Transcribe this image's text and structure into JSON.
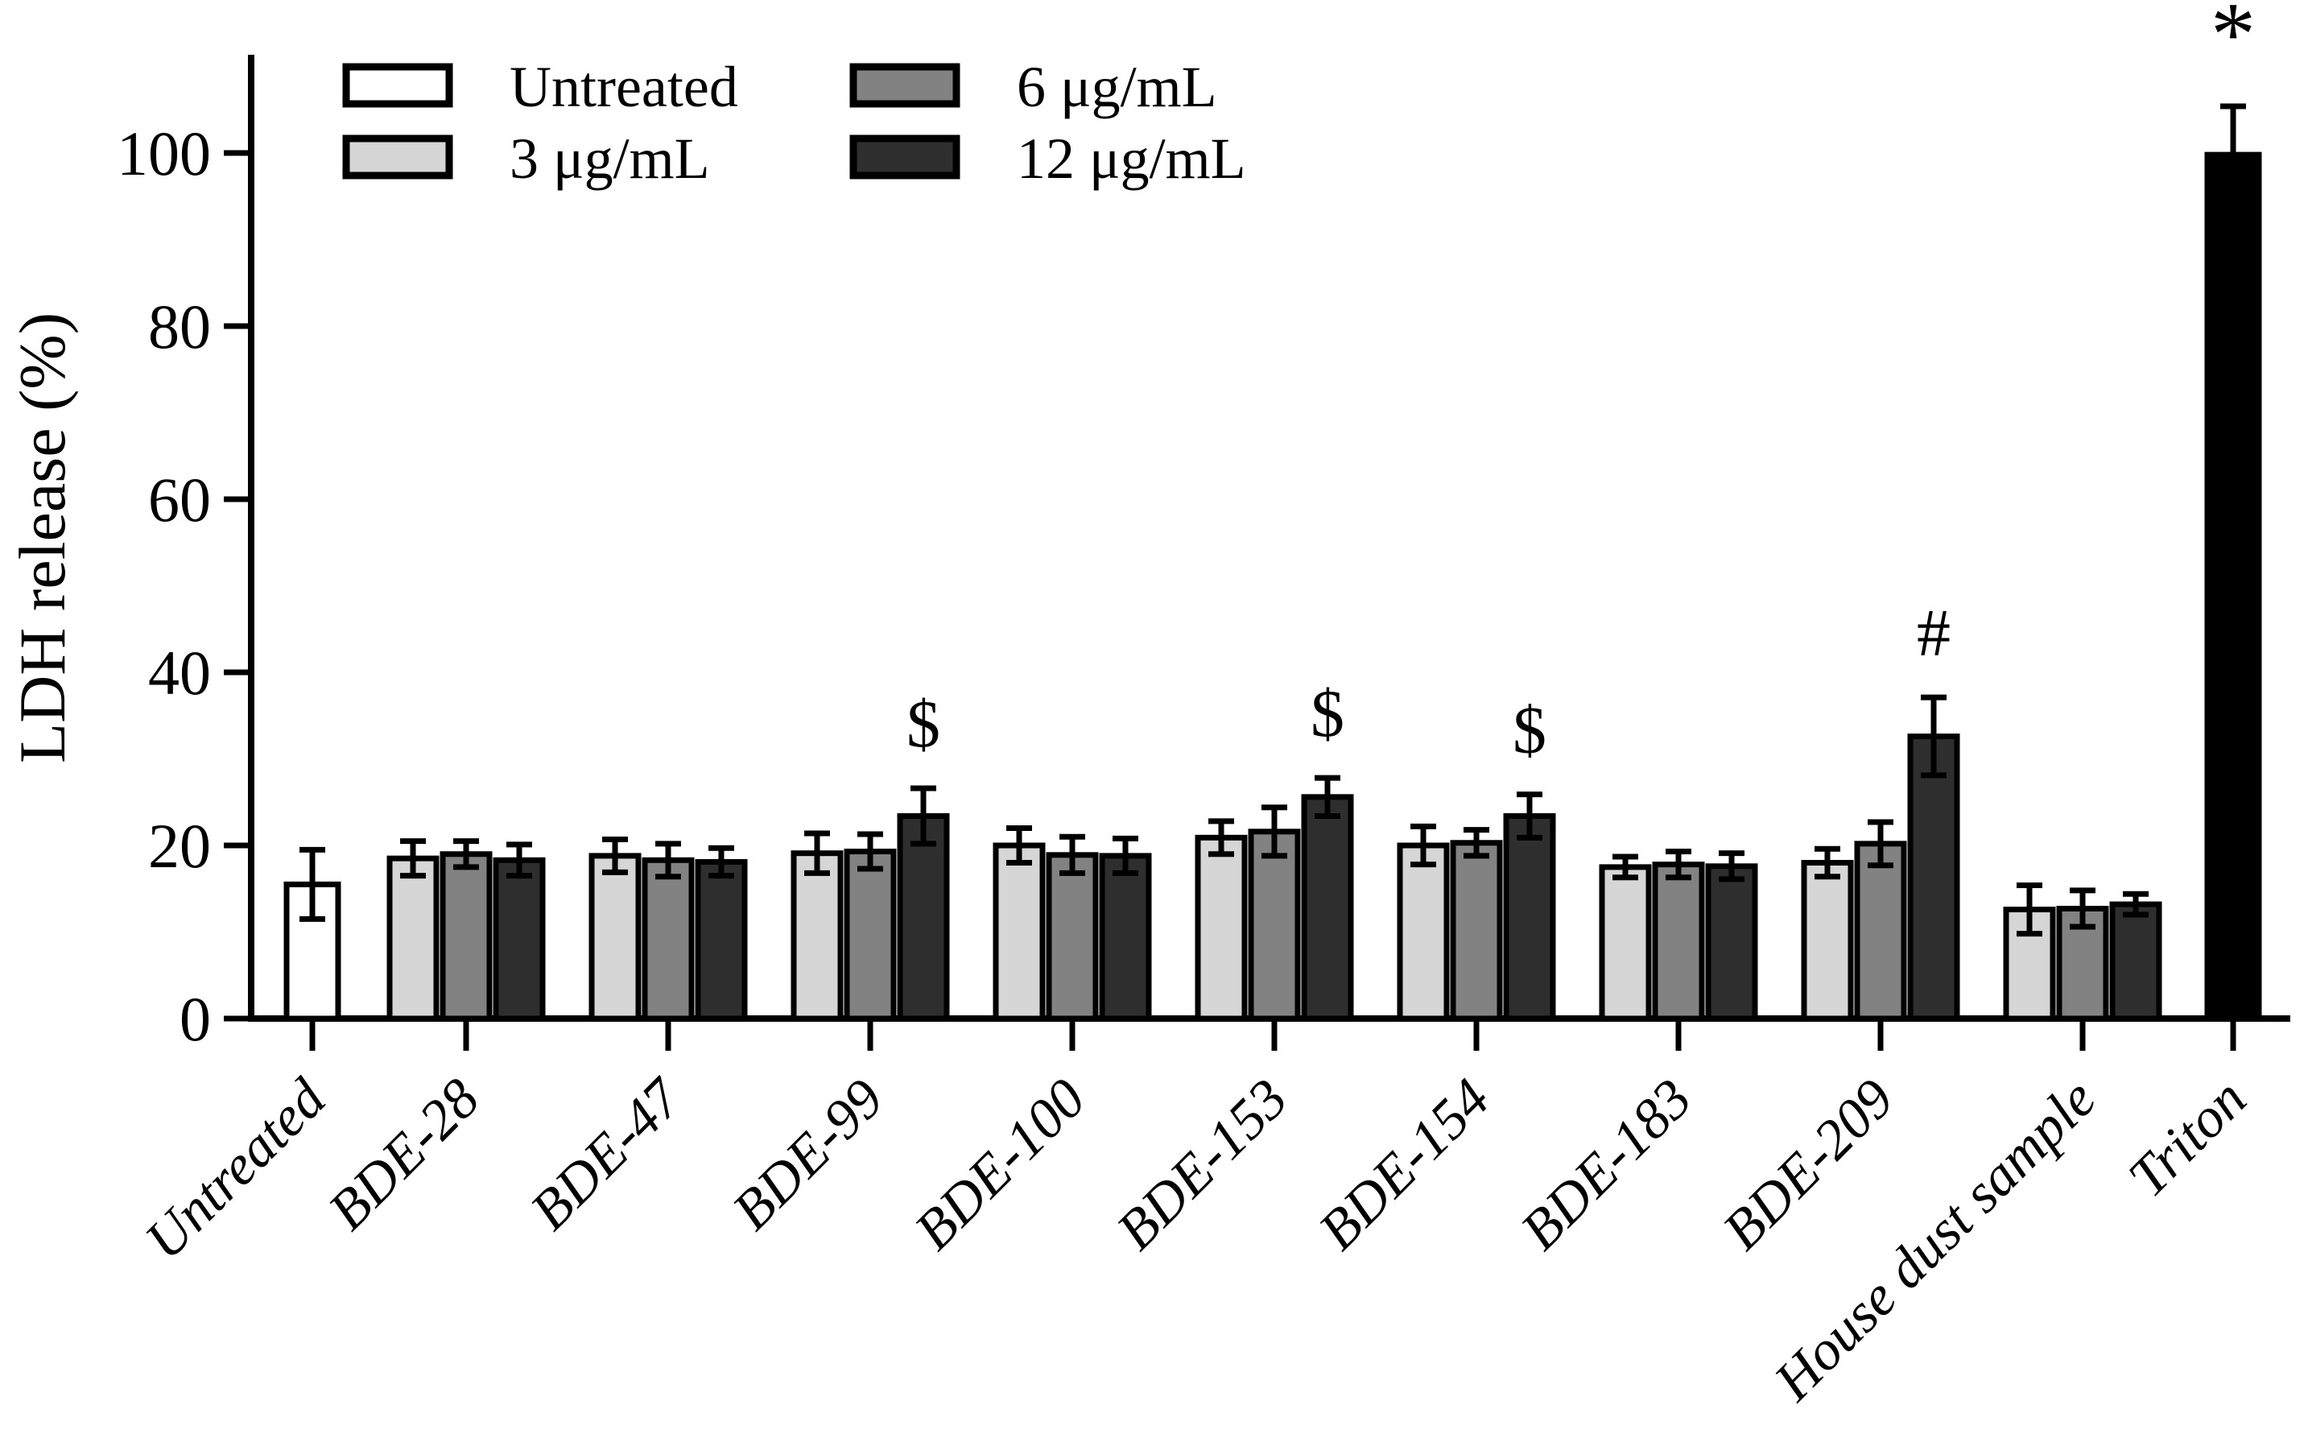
{
  "chart_data": {
    "type": "bar",
    "title": "",
    "xlabel": "",
    "ylabel": "LDH release (%)",
    "ylim": [
      0,
      110
    ],
    "yticks": [
      0,
      20,
      40,
      60,
      80,
      100
    ],
    "grid": false,
    "legend_position": "top-left-inside",
    "legend": [
      {
        "label": "Untreated",
        "color": "#ffffff"
      },
      {
        "label": "3 μg/mL",
        "color": "#d6d6d6"
      },
      {
        "label": "6 μg/mL",
        "color": "#828282"
      },
      {
        "label": "12 μg/mL",
        "color": "#2e2e2e"
      }
    ],
    "error_bars": "sd, both directions, capped",
    "groups": [
      {
        "category": "Untreated",
        "annotation": "",
        "bars": [
          {
            "series": "Untreated",
            "value": 15.5,
            "err": 4.0,
            "color": "#ffffff"
          }
        ]
      },
      {
        "category": "BDE-28",
        "annotation": "",
        "bars": [
          {
            "series": "3 μg/mL",
            "value": 18.5,
            "err": 2.0,
            "color": "#d6d6d6"
          },
          {
            "series": "6 μg/mL",
            "value": 19.0,
            "err": 1.5,
            "color": "#828282"
          },
          {
            "series": "12 μg/mL",
            "value": 18.3,
            "err": 1.8,
            "color": "#2e2e2e"
          }
        ]
      },
      {
        "category": "BDE-47",
        "annotation": "",
        "bars": [
          {
            "series": "3 μg/mL",
            "value": 18.8,
            "err": 1.9,
            "color": "#d6d6d6"
          },
          {
            "series": "6 μg/mL",
            "value": 18.3,
            "err": 1.9,
            "color": "#828282"
          },
          {
            "series": "12 μg/mL",
            "value": 18.1,
            "err": 1.6,
            "color": "#2e2e2e"
          }
        ]
      },
      {
        "category": "BDE-99",
        "annotation": "$",
        "bars": [
          {
            "series": "3 μg/mL",
            "value": 19.1,
            "err": 2.3,
            "color": "#d6d6d6"
          },
          {
            "series": "6 μg/mL",
            "value": 19.3,
            "err": 2.0,
            "color": "#828282"
          },
          {
            "series": "12 μg/mL",
            "value": 23.4,
            "err": 3.2,
            "color": "#2e2e2e"
          }
        ]
      },
      {
        "category": "BDE-100",
        "annotation": "",
        "bars": [
          {
            "series": "3 μg/mL",
            "value": 20.0,
            "err": 2.0,
            "color": "#d6d6d6"
          },
          {
            "series": "6 μg/mL",
            "value": 18.9,
            "err": 2.1,
            "color": "#828282"
          },
          {
            "series": "12 μg/mL",
            "value": 18.8,
            "err": 2.0,
            "color": "#2e2e2e"
          }
        ]
      },
      {
        "category": "BDE-153",
        "annotation": "$",
        "bars": [
          {
            "series": "3 μg/mL",
            "value": 20.9,
            "err": 1.9,
            "color": "#d6d6d6"
          },
          {
            "series": "6 μg/mL",
            "value": 21.6,
            "err": 2.8,
            "color": "#828282"
          },
          {
            "series": "12 μg/mL",
            "value": 25.6,
            "err": 2.2,
            "color": "#2e2e2e"
          }
        ]
      },
      {
        "category": "BDE-154",
        "annotation": "$",
        "bars": [
          {
            "series": "3 μg/mL",
            "value": 20.0,
            "err": 2.2,
            "color": "#d6d6d6"
          },
          {
            "series": "6 μg/mL",
            "value": 20.3,
            "err": 1.5,
            "color": "#828282"
          },
          {
            "series": "12 μg/mL",
            "value": 23.4,
            "err": 2.5,
            "color": "#2e2e2e"
          }
        ]
      },
      {
        "category": "BDE-183",
        "annotation": "",
        "bars": [
          {
            "series": "3 μg/mL",
            "value": 17.5,
            "err": 1.2,
            "color": "#d6d6d6"
          },
          {
            "series": "6 μg/mL",
            "value": 17.8,
            "err": 1.5,
            "color": "#828282"
          },
          {
            "series": "12 μg/mL",
            "value": 17.6,
            "err": 1.5,
            "color": "#2e2e2e"
          }
        ]
      },
      {
        "category": "BDE-209",
        "annotation": "#",
        "bars": [
          {
            "series": "3 μg/mL",
            "value": 18.0,
            "err": 1.6,
            "color": "#d6d6d6"
          },
          {
            "series": "6 μg/mL",
            "value": 20.2,
            "err": 2.5,
            "color": "#828282"
          },
          {
            "series": "12 μg/mL",
            "value": 32.6,
            "err": 4.5,
            "color": "#2e2e2e"
          }
        ]
      },
      {
        "category": "House dust sample",
        "annotation": "",
        "bars": [
          {
            "series": "3 μg/mL",
            "value": 12.6,
            "err": 2.8,
            "color": "#d6d6d6"
          },
          {
            "series": "6 μg/mL",
            "value": 12.7,
            "err": 2.1,
            "color": "#828282"
          },
          {
            "series": "12 μg/mL",
            "value": 13.2,
            "err": 1.2,
            "color": "#2e2e2e"
          }
        ]
      },
      {
        "category": "Triton",
        "annotation": "*",
        "bars": [
          {
            "series": "Triton",
            "value": 99.8,
            "err": 5.6,
            "color": "#000000"
          }
        ]
      }
    ]
  }
}
